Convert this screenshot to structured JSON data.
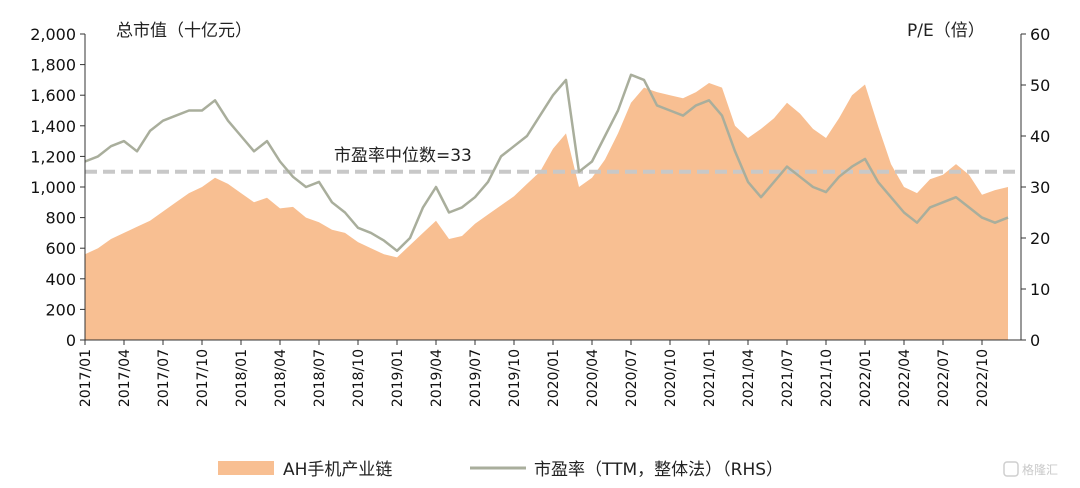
{
  "chart_data": {
    "type": "area",
    "left_axis_title": "总市值（十亿元）",
    "right_axis_title": "P/E（倍）",
    "y_left": {
      "min": 0,
      "max": 2000,
      "ticks": [
        "0",
        "200",
        "400",
        "600",
        "800",
        "1,000",
        "1,200",
        "1,400",
        "1,600",
        "1,800",
        "2,000"
      ]
    },
    "y_right": {
      "min": 0,
      "max": 60,
      "ticks": [
        "0",
        "10",
        "20",
        "30",
        "40",
        "50",
        "60"
      ]
    },
    "x_tick_labels": [
      "2017/01",
      "2017/04",
      "2017/07",
      "2017/10",
      "2018/01",
      "2018/04",
      "2018/07",
      "2018/10",
      "2019/01",
      "2019/04",
      "2019/07",
      "2019/10",
      "2020/01",
      "2020/04",
      "2020/07",
      "2020/10",
      "2021/01",
      "2021/04",
      "2021/07",
      "2021/10",
      "2022/01",
      "2022/04",
      "2022/07",
      "2022/10"
    ],
    "x_range": [
      "2017/01",
      "2023/01"
    ],
    "median": {
      "value": 33,
      "label": "市盈率中位数=33"
    },
    "colors": {
      "area": "#f8bf92",
      "pe_line": "#a9ae9c",
      "median_line": "#c8c8c8"
    },
    "series": [
      {
        "name": "AH手机产业链",
        "axis": "left",
        "style": "area",
        "points": [
          [
            "2017/01",
            560
          ],
          [
            "2017/02",
            600
          ],
          [
            "2017/03",
            660
          ],
          [
            "2017/04",
            700
          ],
          [
            "2017/05",
            740
          ],
          [
            "2017/06",
            780
          ],
          [
            "2017/07",
            840
          ],
          [
            "2017/08",
            900
          ],
          [
            "2017/09",
            960
          ],
          [
            "2017/10",
            1000
          ],
          [
            "2017/11",
            1060
          ],
          [
            "2017/12",
            1020
          ],
          [
            "2018/01",
            960
          ],
          [
            "2018/02",
            900
          ],
          [
            "2018/03",
            930
          ],
          [
            "2018/04",
            860
          ],
          [
            "2018/05",
            870
          ],
          [
            "2018/06",
            800
          ],
          [
            "2018/07",
            770
          ],
          [
            "2018/08",
            720
          ],
          [
            "2018/09",
            700
          ],
          [
            "2018/10",
            640
          ],
          [
            "2018/11",
            600
          ],
          [
            "2018/12",
            560
          ],
          [
            "2019/01",
            540
          ],
          [
            "2019/02",
            620
          ],
          [
            "2019/03",
            700
          ],
          [
            "2019/04",
            780
          ],
          [
            "2019/05",
            660
          ],
          [
            "2019/06",
            680
          ],
          [
            "2019/07",
            760
          ],
          [
            "2019/08",
            820
          ],
          [
            "2019/09",
            880
          ],
          [
            "2019/10",
            940
          ],
          [
            "2019/11",
            1020
          ],
          [
            "2019/12",
            1100
          ],
          [
            "2020/01",
            1250
          ],
          [
            "2020/02",
            1350
          ],
          [
            "2020/03",
            1000
          ],
          [
            "2020/04",
            1060
          ],
          [
            "2020/05",
            1180
          ],
          [
            "2020/06",
            1350
          ],
          [
            "2020/07",
            1550
          ],
          [
            "2020/08",
            1650
          ],
          [
            "2020/09",
            1620
          ],
          [
            "2020/10",
            1600
          ],
          [
            "2020/11",
            1580
          ],
          [
            "2020/12",
            1620
          ],
          [
            "2021/01",
            1680
          ],
          [
            "2021/02",
            1650
          ],
          [
            "2021/03",
            1400
          ],
          [
            "2021/04",
            1320
          ],
          [
            "2021/05",
            1380
          ],
          [
            "2021/06",
            1450
          ],
          [
            "2021/07",
            1550
          ],
          [
            "2021/08",
            1480
          ],
          [
            "2021/09",
            1380
          ],
          [
            "2021/10",
            1320
          ],
          [
            "2021/11",
            1450
          ],
          [
            "2021/12",
            1600
          ],
          [
            "2022/01",
            1670
          ],
          [
            "2022/02",
            1400
          ],
          [
            "2022/03",
            1150
          ],
          [
            "2022/04",
            1000
          ],
          [
            "2022/05",
            960
          ],
          [
            "2022/06",
            1050
          ],
          [
            "2022/07",
            1080
          ],
          [
            "2022/08",
            1150
          ],
          [
            "2022/09",
            1080
          ],
          [
            "2022/10",
            950
          ],
          [
            "2022/11",
            980
          ],
          [
            "2022/12",
            1000
          ]
        ]
      },
      {
        "name": "市盈率（TTM，整体法）（RHS）",
        "axis": "right",
        "style": "line",
        "points": [
          [
            "2017/01",
            35
          ],
          [
            "2017/02",
            36
          ],
          [
            "2017/03",
            38
          ],
          [
            "2017/04",
            39
          ],
          [
            "2017/05",
            37
          ],
          [
            "2017/06",
            41
          ],
          [
            "2017/07",
            43
          ],
          [
            "2017/08",
            44
          ],
          [
            "2017/09",
            45
          ],
          [
            "2017/10",
            45
          ],
          [
            "2017/11",
            47
          ],
          [
            "2017/12",
            43
          ],
          [
            "2018/01",
            40
          ],
          [
            "2018/02",
            37
          ],
          [
            "2018/03",
            39
          ],
          [
            "2018/04",
            35
          ],
          [
            "2018/05",
            32
          ],
          [
            "2018/06",
            30
          ],
          [
            "2018/07",
            31
          ],
          [
            "2018/08",
            27
          ],
          [
            "2018/09",
            25
          ],
          [
            "2018/10",
            22
          ],
          [
            "2018/11",
            21
          ],
          [
            "2018/12",
            19.5
          ],
          [
            "2019/01",
            17.5
          ],
          [
            "2019/02",
            20
          ],
          [
            "2019/03",
            26
          ],
          [
            "2019/04",
            30
          ],
          [
            "2019/05",
            25
          ],
          [
            "2019/06",
            26
          ],
          [
            "2019/07",
            28
          ],
          [
            "2019/08",
            31
          ],
          [
            "2019/09",
            36
          ],
          [
            "2019/10",
            38
          ],
          [
            "2019/11",
            40
          ],
          [
            "2019/12",
            44
          ],
          [
            "2020/01",
            48
          ],
          [
            "2020/02",
            51
          ],
          [
            "2020/03",
            33
          ],
          [
            "2020/04",
            35
          ],
          [
            "2020/05",
            40
          ],
          [
            "2020/06",
            45
          ],
          [
            "2020/07",
            52
          ],
          [
            "2020/08",
            51
          ],
          [
            "2020/09",
            46
          ],
          [
            "2020/10",
            45
          ],
          [
            "2020/11",
            44
          ],
          [
            "2020/12",
            46
          ],
          [
            "2021/01",
            47
          ],
          [
            "2021/02",
            44
          ],
          [
            "2021/03",
            37
          ],
          [
            "2021/04",
            31
          ],
          [
            "2021/05",
            28
          ],
          [
            "2021/06",
            31
          ],
          [
            "2021/07",
            34
          ],
          [
            "2021/08",
            32
          ],
          [
            "2021/09",
            30
          ],
          [
            "2021/10",
            29
          ],
          [
            "2021/11",
            32
          ],
          [
            "2021/12",
            34
          ],
          [
            "2022/01",
            35.5
          ],
          [
            "2022/02",
            31
          ],
          [
            "2022/03",
            28
          ],
          [
            "2022/04",
            25
          ],
          [
            "2022/05",
            23
          ],
          [
            "2022/06",
            26
          ],
          [
            "2022/07",
            27
          ],
          [
            "2022/08",
            28
          ],
          [
            "2022/09",
            26
          ],
          [
            "2022/10",
            24
          ],
          [
            "2022/11",
            23
          ],
          [
            "2022/12",
            24
          ]
        ]
      }
    ],
    "legend": {
      "position": "bottom",
      "items": [
        {
          "label": "AH手机产业链",
          "swatch": "area"
        },
        {
          "label": "市盈率（TTM，整体法）（RHS）",
          "swatch": "line"
        }
      ]
    }
  },
  "watermark": {
    "icon": "gelonghui-logo-icon",
    "text": "格隆汇"
  }
}
